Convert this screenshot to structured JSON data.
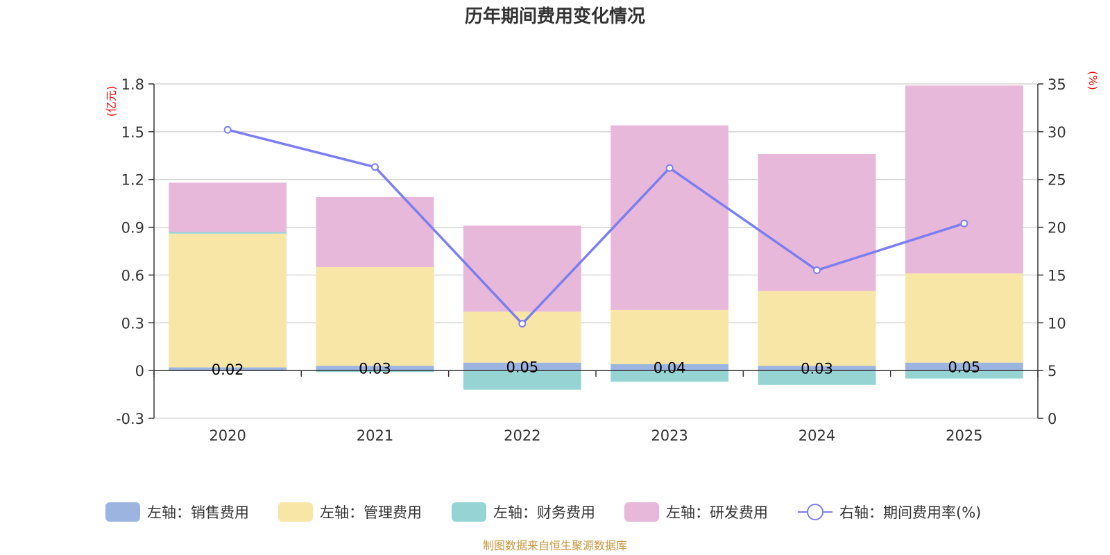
{
  "chart_data": {
    "type": "bar",
    "stacked": true,
    "title": "历年期间费用变化情况",
    "categories": [
      "2020",
      "2021",
      "2022",
      "2023",
      "2024",
      "2025"
    ],
    "left_axis": {
      "unit_label": "(亿元)",
      "ylim": [
        -0.3,
        1.8
      ],
      "ticks": [
        -0.3,
        0,
        0.3,
        0.6,
        0.9,
        1.2,
        1.5,
        1.8
      ],
      "tick_labels": [
        "-0.3",
        "0",
        "0.3",
        "0.6",
        "0.9",
        "1.2",
        "1.5",
        "1.8"
      ]
    },
    "right_axis": {
      "unit_label": "(%)",
      "ylim": [
        0,
        35
      ],
      "ticks": [
        0,
        5,
        10,
        15,
        20,
        25,
        30,
        35
      ],
      "tick_labels": [
        "0",
        "5",
        "10",
        "15",
        "20",
        "25",
        "30",
        "35"
      ]
    },
    "series": [
      {
        "name": "左轴：销售费用",
        "axis": "left",
        "kind": "bar",
        "color": "#9bb5e0",
        "values": [
          0.02,
          0.03,
          0.05,
          0.04,
          0.03,
          0.05
        ],
        "labels": [
          "0.02",
          "0.03",
          "0.05",
          "0.04",
          "0.03",
          "0.05"
        ]
      },
      {
        "name": "左轴：管理费用",
        "axis": "left",
        "kind": "bar",
        "color": "#f8e6a6",
        "values": [
          0.84,
          0.62,
          0.32,
          0.34,
          0.47,
          0.56
        ]
      },
      {
        "name": "左轴：财务费用",
        "axis": "left",
        "kind": "bar",
        "color": "#96d4d4",
        "values": [
          0.01,
          -0.01,
          -0.12,
          -0.07,
          -0.09,
          -0.05
        ]
      },
      {
        "name": "左轴：研发费用",
        "axis": "left",
        "kind": "bar",
        "color": "#e7b8d9",
        "values": [
          0.31,
          0.44,
          0.54,
          1.16,
          0.86,
          1.18
        ]
      },
      {
        "name": "右轴：期间费用率(%)",
        "axis": "right",
        "kind": "line",
        "color": "#7b7ef0",
        "values": [
          30.2,
          26.3,
          9.9,
          26.2,
          15.5,
          20.4
        ]
      }
    ]
  },
  "footer": {
    "source": "制图数据来自恒生聚源数据库"
  }
}
